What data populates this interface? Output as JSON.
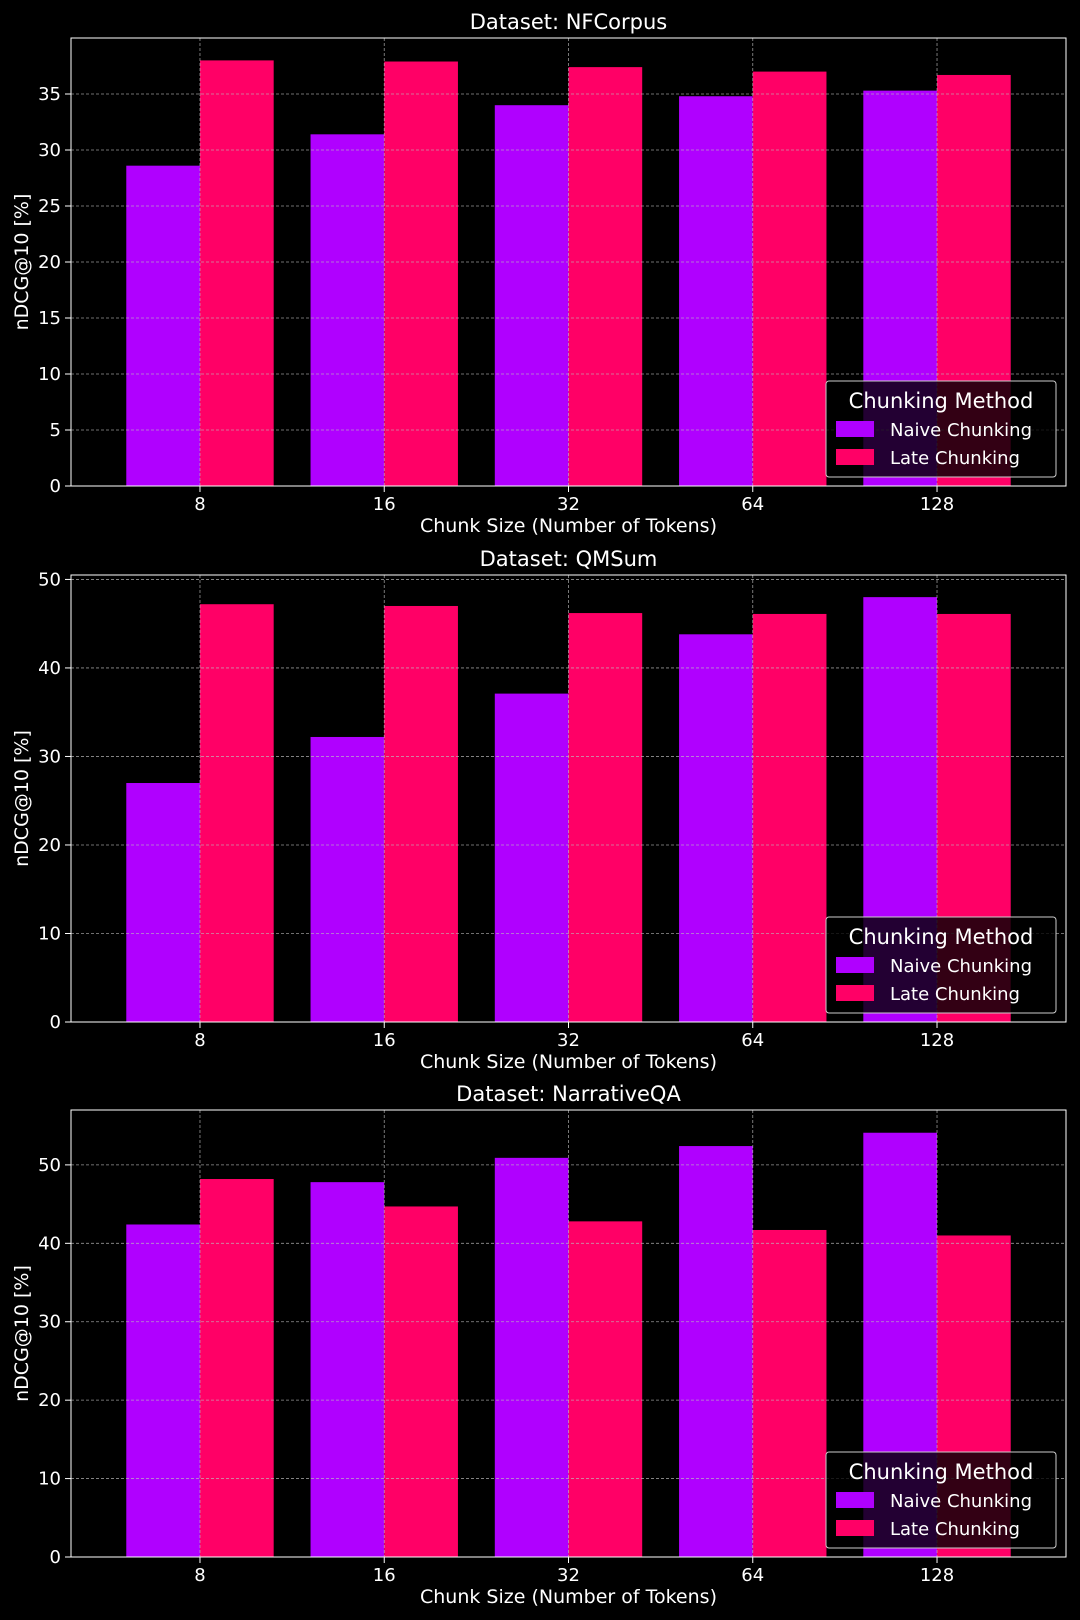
{
  "chart_data": [
    {
      "type": "bar",
      "title": "Dataset: NFCorpus",
      "xlabel": "Chunk Size (Number of Tokens)",
      "ylabel": "nDCG@10 [%]",
      "categories": [
        "8",
        "16",
        "32",
        "64",
        "128"
      ],
      "yticks": [
        0,
        5,
        10,
        15,
        20,
        25,
        30,
        35
      ],
      "ylim": [
        0,
        40
      ],
      "grid": true,
      "legend": {
        "title": "Chunking Method",
        "position": "lower-right"
      },
      "series": [
        {
          "name": "Naive Chunking",
          "color": "#b000ff",
          "values": [
            28.6,
            31.4,
            34.0,
            34.8,
            35.3
          ]
        },
        {
          "name": "Late Chunking",
          "color": "#ff0066",
          "values": [
            38.0,
            37.9,
            37.4,
            37.0,
            36.7
          ]
        }
      ]
    },
    {
      "type": "bar",
      "title": "Dataset: QMSum",
      "xlabel": "Chunk Size (Number of Tokens)",
      "ylabel": "nDCG@10 [%]",
      "categories": [
        "8",
        "16",
        "32",
        "64",
        "128"
      ],
      "yticks": [
        0,
        10,
        20,
        30,
        40,
        50
      ],
      "ylim": [
        0,
        50.5
      ],
      "grid": true,
      "legend": {
        "title": "Chunking Method",
        "position": "lower-right"
      },
      "series": [
        {
          "name": "Naive Chunking",
          "color": "#b000ff",
          "values": [
            27.0,
            32.2,
            37.1,
            43.8,
            48.0
          ]
        },
        {
          "name": "Late Chunking",
          "color": "#ff0066",
          "values": [
            47.2,
            47.0,
            46.2,
            46.1,
            46.1
          ]
        }
      ]
    },
    {
      "type": "bar",
      "title": "Dataset: NarrativeQA",
      "xlabel": "Chunk Size (Number of Tokens)",
      "ylabel": "nDCG@10 [%]",
      "categories": [
        "8",
        "16",
        "32",
        "64",
        "128"
      ],
      "yticks": [
        0,
        10,
        20,
        30,
        40,
        50
      ],
      "ylim": [
        0,
        57
      ],
      "grid": true,
      "legend": {
        "title": "Chunking Method",
        "position": "lower-right"
      },
      "series": [
        {
          "name": "Naive Chunking",
          "color": "#b000ff",
          "values": [
            42.4,
            47.8,
            50.9,
            52.4,
            54.1
          ]
        },
        {
          "name": "Late Chunking",
          "color": "#ff0066",
          "values": [
            48.2,
            44.7,
            42.8,
            41.7,
            41.0
          ]
        }
      ]
    }
  ]
}
